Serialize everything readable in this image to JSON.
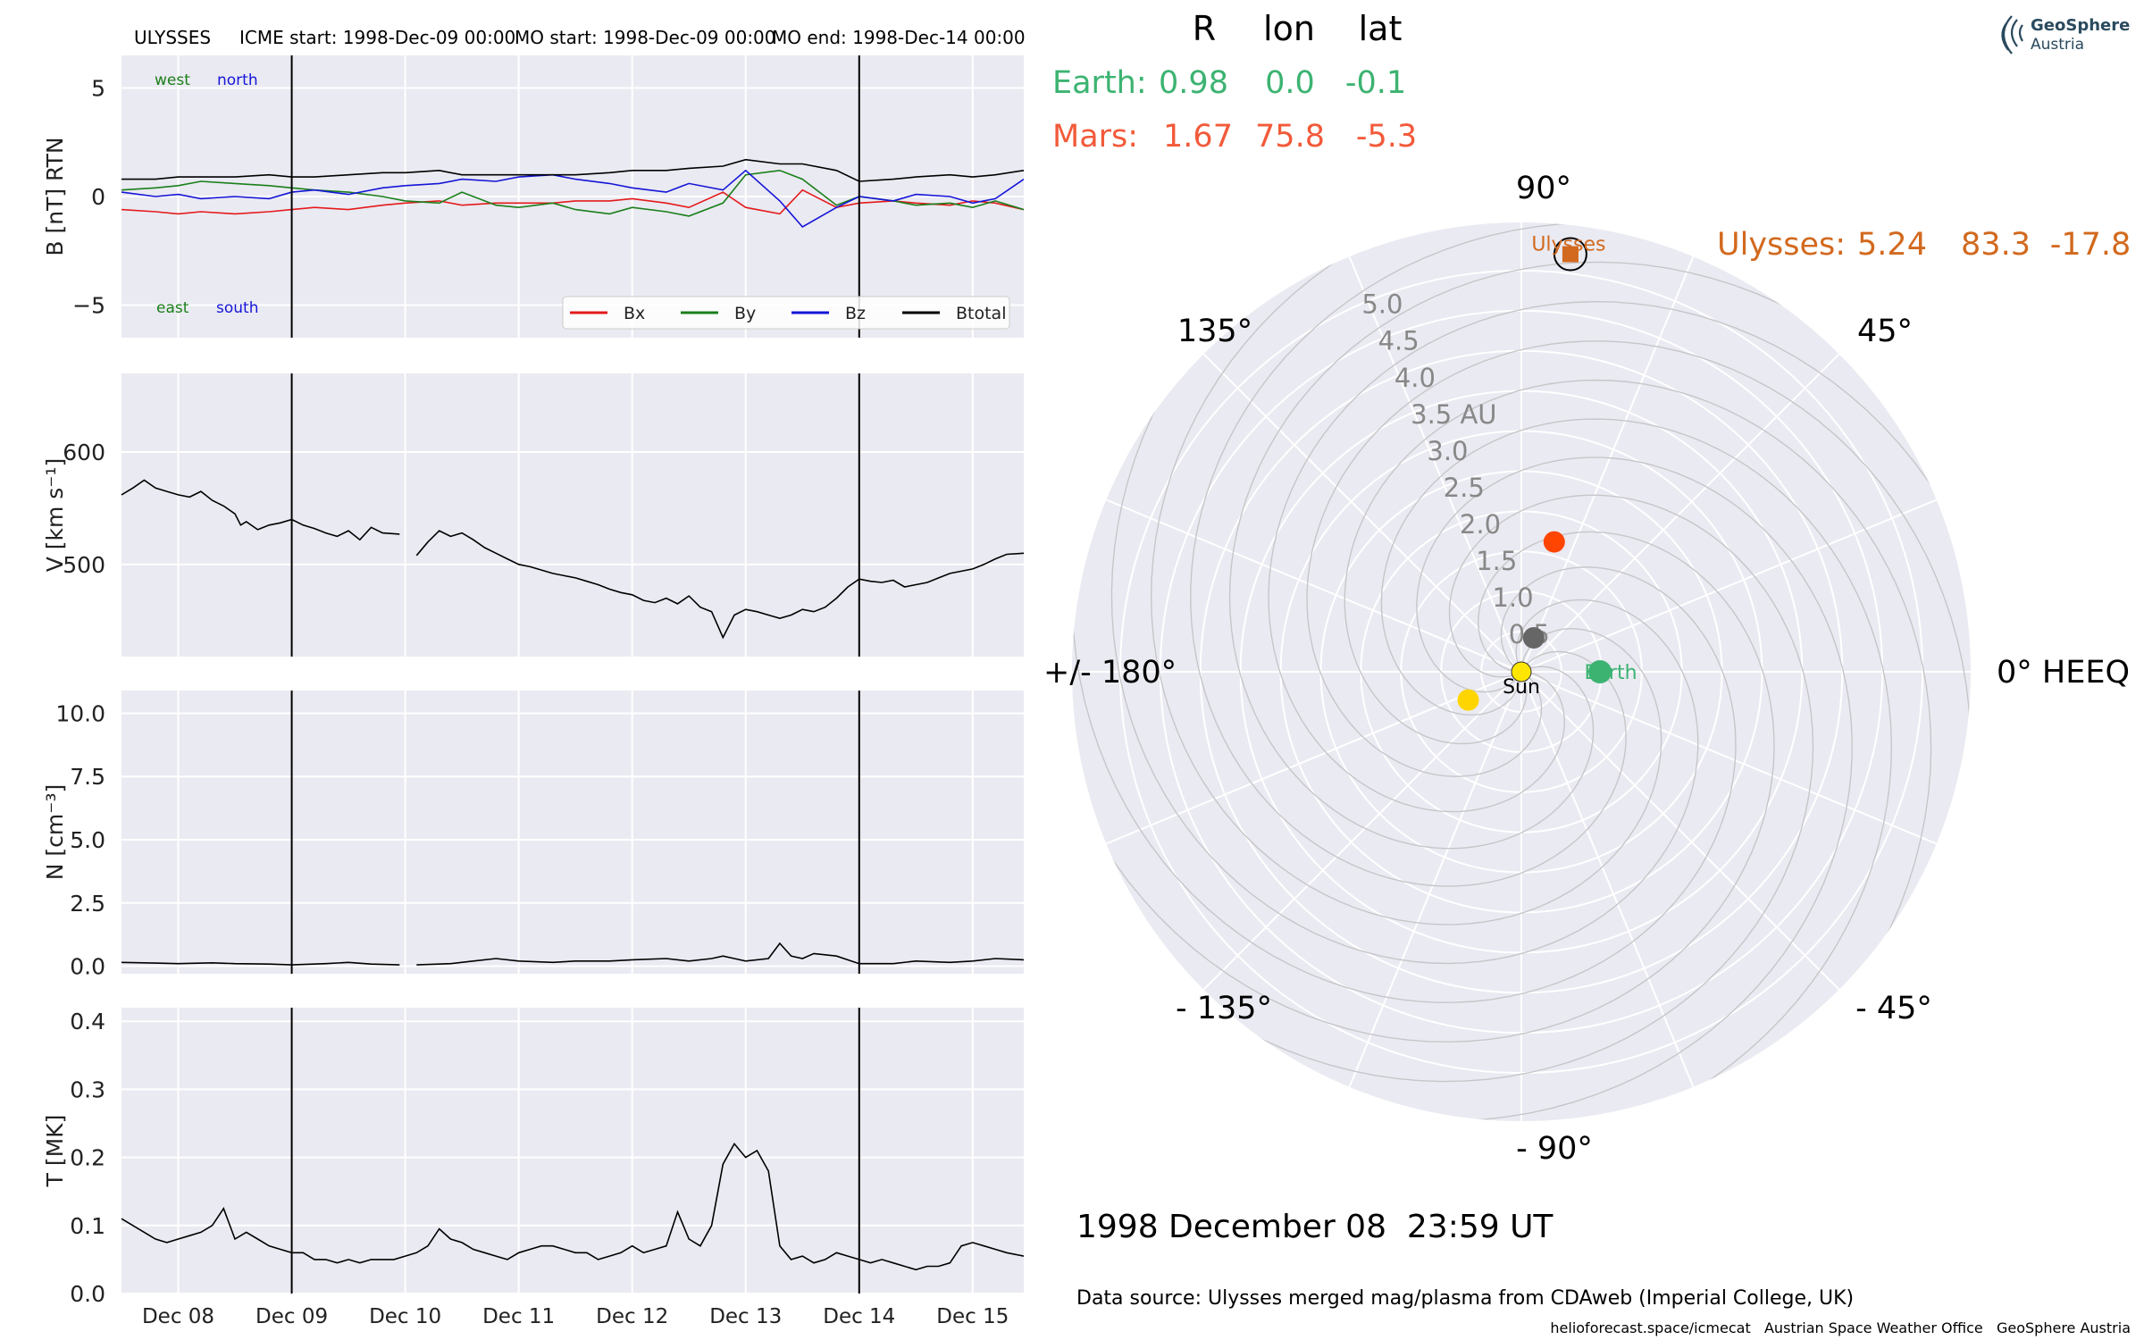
{
  "header": {
    "spacecraft": "ULYSSES",
    "icme_start": "ICME start: 1998-Dec-09 00:00",
    "mo_start": "MO start: 1998-Dec-09 00:00",
    "mo_end": "MO end: 1998-Dec-14 00:00"
  },
  "colors": {
    "bx": "#e41a1c",
    "by": "#1a7f1a",
    "bz": "#1515d8",
    "btot": "#000000",
    "earth": "#3cb371",
    "mars": "#f25a3a",
    "ulysses": "#d2691e",
    "sun": "#ffe600",
    "panel_bg": "#eaeaf2"
  },
  "chart_data": [
    {
      "type": "line",
      "ylabel": "B [nT] RTN",
      "ylim": [
        -6.5,
        6.5
      ],
      "yticks": [
        "5",
        "0",
        "−5"
      ],
      "ytick_values": [
        5,
        0,
        -5
      ],
      "annotations": {
        "west": "west",
        "north": "north",
        "east": "east",
        "south": "south"
      },
      "legend": [
        "Bx",
        "By",
        "Bz",
        "Btotal"
      ],
      "legend_position": "lower-right",
      "series": [
        {
          "name": "Bx",
          "x": [
            7.5,
            7.8,
            8.0,
            8.2,
            8.5,
            8.8,
            9.0,
            9.2,
            9.5,
            9.8,
            10.0,
            10.3,
            10.5,
            10.8,
            11.0,
            11.3,
            11.5,
            11.8,
            12.0,
            12.3,
            12.5,
            12.8,
            13.0,
            13.3,
            13.5,
            13.8,
            14.0,
            14.3,
            14.5,
            14.8,
            15.0,
            15.2,
            15.45
          ],
          "y": [
            -0.6,
            -0.7,
            -0.8,
            -0.7,
            -0.8,
            -0.7,
            -0.6,
            -0.5,
            -0.6,
            -0.4,
            -0.3,
            -0.2,
            -0.4,
            -0.3,
            -0.3,
            -0.3,
            -0.2,
            -0.2,
            -0.1,
            -0.3,
            -0.5,
            0.2,
            -0.5,
            -0.8,
            0.3,
            -0.5,
            -0.3,
            -0.2,
            -0.3,
            -0.4,
            -0.2,
            -0.3,
            -0.6
          ]
        },
        {
          "name": "By",
          "x": [
            7.5,
            7.8,
            8.0,
            8.2,
            8.5,
            8.8,
            9.0,
            9.2,
            9.5,
            9.8,
            10.0,
            10.3,
            10.5,
            10.8,
            11.0,
            11.3,
            11.5,
            11.8,
            12.0,
            12.3,
            12.5,
            12.8,
            13.0,
            13.3,
            13.5,
            13.8,
            14.0,
            14.3,
            14.5,
            14.8,
            15.0,
            15.2,
            15.45
          ],
          "y": [
            0.3,
            0.4,
            0.5,
            0.7,
            0.6,
            0.5,
            0.4,
            0.3,
            0.2,
            0.0,
            -0.2,
            -0.3,
            0.2,
            -0.4,
            -0.5,
            -0.3,
            -0.6,
            -0.8,
            -0.5,
            -0.7,
            -0.9,
            -0.3,
            1.0,
            1.2,
            0.8,
            -0.4,
            0.0,
            -0.2,
            -0.4,
            -0.3,
            -0.5,
            -0.2,
            -0.6
          ]
        },
        {
          "name": "Bz",
          "x": [
            7.5,
            7.8,
            8.0,
            8.2,
            8.5,
            8.8,
            9.0,
            9.2,
            9.5,
            9.8,
            10.0,
            10.3,
            10.5,
            10.8,
            11.0,
            11.3,
            11.5,
            11.8,
            12.0,
            12.3,
            12.5,
            12.8,
            13.0,
            13.3,
            13.5,
            13.8,
            14.0,
            14.3,
            14.5,
            14.8,
            15.0,
            15.2,
            15.45
          ],
          "y": [
            0.2,
            0.0,
            0.1,
            -0.1,
            0.0,
            -0.1,
            0.2,
            0.3,
            0.1,
            0.4,
            0.5,
            0.6,
            0.8,
            0.7,
            0.9,
            1.0,
            0.8,
            0.6,
            0.4,
            0.2,
            0.6,
            0.3,
            1.2,
            -0.2,
            -1.4,
            -0.5,
            0.0,
            -0.2,
            0.1,
            0.0,
            -0.3,
            -0.1,
            0.8
          ]
        },
        {
          "name": "Btotal",
          "x": [
            7.5,
            7.8,
            8.0,
            8.2,
            8.5,
            8.8,
            9.0,
            9.2,
            9.5,
            9.8,
            10.0,
            10.3,
            10.5,
            10.8,
            11.0,
            11.3,
            11.5,
            11.8,
            12.0,
            12.3,
            12.5,
            12.8,
            13.0,
            13.3,
            13.5,
            13.8,
            14.0,
            14.3,
            14.5,
            14.8,
            15.0,
            15.2,
            15.45
          ],
          "y": [
            0.8,
            0.8,
            0.9,
            0.9,
            0.9,
            1.0,
            0.9,
            0.9,
            1.0,
            1.1,
            1.1,
            1.2,
            1.0,
            1.0,
            1.0,
            1.0,
            1.0,
            1.1,
            1.2,
            1.2,
            1.3,
            1.4,
            1.7,
            1.5,
            1.5,
            1.2,
            0.7,
            0.8,
            0.9,
            1.0,
            0.9,
            1.0,
            1.2
          ]
        }
      ]
    },
    {
      "type": "line",
      "ylabel": "V [km s⁻¹]",
      "ylim": [
        418,
        670
      ],
      "yticks": [
        "600",
        "500"
      ],
      "ytick_values": [
        600,
        500
      ],
      "series": [
        {
          "segments": [
            {
              "x": [
                7.5,
                7.6,
                7.7,
                7.8,
                7.9,
                8.0,
                8.1,
                8.2,
                8.3,
                8.4,
                8.5,
                8.55,
                8.6,
                8.7,
                8.8,
                8.9,
                9.0,
                9.1,
                9.2,
                9.3,
                9.4,
                9.5,
                9.6,
                9.7,
                9.8,
                9.95
              ],
              "y": [
                562,
                568,
                575,
                568,
                565,
                562,
                560,
                565,
                557,
                552,
                545,
                535,
                538,
                531,
                535,
                537,
                540,
                535,
                532,
                528,
                525,
                530,
                522,
                533,
                528,
                527
              ]
            },
            {
              "x": [
                10.1,
                10.2,
                10.3,
                10.4,
                10.5,
                10.6,
                10.7,
                10.8,
                10.9,
                11.0,
                11.1,
                11.2,
                11.3,
                11.4,
                11.5,
                11.6,
                11.7,
                11.8,
                11.9,
                12.0,
                12.1,
                12.2,
                12.3,
                12.4,
                12.5,
                12.6,
                12.7,
                12.8,
                12.9,
                13.0,
                13.1,
                13.2,
                13.3,
                13.4,
                13.5,
                13.6,
                13.7,
                13.8,
                13.9,
                14.0,
                14.1,
                14.2,
                14.3,
                14.4,
                14.5,
                14.6,
                14.7,
                14.8,
                14.9,
                15.0,
                15.1,
                15.2,
                15.3,
                15.45
              ],
              "y": [
                508,
                520,
                530,
                525,
                528,
                522,
                515,
                510,
                505,
                500,
                498,
                495,
                492,
                490,
                488,
                485,
                482,
                478,
                475,
                473,
                468,
                466,
                470,
                465,
                472,
                462,
                458,
                435,
                455,
                460,
                458,
                455,
                452,
                455,
                460,
                458,
                462,
                470,
                480,
                487,
                485,
                484,
                486,
                480,
                482,
                484,
                488,
                492,
                494,
                496,
                500,
                505,
                509,
                510
              ]
            }
          ]
        }
      ]
    },
    {
      "type": "line",
      "ylabel": "N [cm⁻³]",
      "ylim": [
        -0.3,
        10.9
      ],
      "yticks": [
        "10.0",
        "7.5",
        "5.0",
        "2.5",
        "0.0"
      ],
      "ytick_values": [
        10,
        7.5,
        5,
        2.5,
        0
      ],
      "series": [
        {
          "segments": [
            {
              "x": [
                7.5,
                7.8,
                8.0,
                8.3,
                8.5,
                8.8,
                9.0,
                9.3,
                9.5,
                9.7,
                9.95
              ],
              "y": [
                0.15,
                0.12,
                0.1,
                0.13,
                0.1,
                0.08,
                0.05,
                0.1,
                0.15,
                0.08,
                0.05
              ]
            },
            {
              "x": [
                10.1,
                10.4,
                10.6,
                10.8,
                11.0,
                11.3,
                11.5,
                11.8,
                12.0,
                12.3,
                12.5,
                12.7,
                12.8,
                12.9,
                13.0,
                13.2,
                13.3,
                13.4,
                13.5,
                13.6,
                13.8,
                14.0,
                14.3,
                14.5,
                14.8,
                15.0,
                15.2,
                15.45
              ],
              "y": [
                0.05,
                0.1,
                0.2,
                0.3,
                0.2,
                0.15,
                0.2,
                0.2,
                0.25,
                0.3,
                0.2,
                0.3,
                0.4,
                0.3,
                0.2,
                0.3,
                0.9,
                0.4,
                0.3,
                0.5,
                0.4,
                0.1,
                0.1,
                0.2,
                0.15,
                0.2,
                0.3,
                0.25
              ]
            }
          ]
        }
      ]
    },
    {
      "type": "line",
      "ylabel": "T [MK]",
      "ylim": [
        0,
        0.42
      ],
      "yticks": [
        "0.4",
        "0.3",
        "0.2",
        "0.1",
        "0.0"
      ],
      "ytick_values": [
        0.4,
        0.3,
        0.2,
        0.1,
        0.0
      ],
      "xtick_labels": [
        "Dec 08",
        "Dec 09",
        "Dec 10",
        "Dec 11",
        "Dec 12",
        "Dec 13",
        "Dec 14",
        "Dec 15"
      ],
      "xtick_values": [
        8,
        9,
        10,
        11,
        12,
        13,
        14,
        15
      ],
      "xlim": [
        7.5,
        15.45
      ],
      "vlines": [
        9,
        14
      ],
      "series": [
        {
          "x": [
            7.5,
            7.6,
            7.7,
            7.8,
            7.9,
            8.0,
            8.1,
            8.2,
            8.3,
            8.4,
            8.5,
            8.6,
            8.7,
            8.8,
            8.9,
            9.0,
            9.1,
            9.2,
            9.3,
            9.4,
            9.5,
            9.6,
            9.7,
            9.8,
            9.9,
            10.0,
            10.1,
            10.2,
            10.3,
            10.4,
            10.5,
            10.6,
            10.7,
            10.8,
            10.9,
            11.0,
            11.1,
            11.2,
            11.3,
            11.4,
            11.5,
            11.6,
            11.7,
            11.8,
            11.9,
            12.0,
            12.1,
            12.2,
            12.3,
            12.4,
            12.5,
            12.6,
            12.7,
            12.8,
            12.9,
            13.0,
            13.1,
            13.2,
            13.3,
            13.4,
            13.5,
            13.6,
            13.7,
            13.8,
            13.9,
            14.0,
            14.1,
            14.2,
            14.3,
            14.4,
            14.5,
            14.6,
            14.7,
            14.8,
            14.9,
            15.0,
            15.1,
            15.2,
            15.3,
            15.45
          ],
          "y": [
            0.11,
            0.1,
            0.09,
            0.08,
            0.075,
            0.08,
            0.085,
            0.09,
            0.1,
            0.125,
            0.08,
            0.09,
            0.08,
            0.07,
            0.065,
            0.06,
            0.06,
            0.05,
            0.05,
            0.045,
            0.05,
            0.045,
            0.05,
            0.05,
            0.05,
            0.055,
            0.06,
            0.07,
            0.095,
            0.08,
            0.075,
            0.065,
            0.06,
            0.055,
            0.05,
            0.06,
            0.065,
            0.07,
            0.07,
            0.065,
            0.06,
            0.06,
            0.05,
            0.055,
            0.06,
            0.07,
            0.06,
            0.065,
            0.07,
            0.12,
            0.08,
            0.07,
            0.1,
            0.19,
            0.22,
            0.2,
            0.21,
            0.18,
            0.07,
            0.05,
            0.055,
            0.045,
            0.05,
            0.06,
            0.055,
            0.05,
            0.045,
            0.05,
            0.045,
            0.04,
            0.035,
            0.04,
            0.04,
            0.045,
            0.07,
            0.075,
            0.07,
            0.065,
            0.06,
            0.055
          ]
        }
      ]
    },
    {
      "type": "scatter",
      "title": "",
      "projection": "polar",
      "angle_labels": [
        "90°",
        "45°",
        "0° HEEQ",
        "- 45°",
        "- 90°",
        "- 135°",
        "+/- 180°",
        "135°"
      ],
      "angle_values": [
        90,
        45,
        0,
        -45,
        -90,
        -135,
        180,
        135
      ],
      "radial_labels": [
        "0.5",
        "1.0",
        "1.5",
        "2.0",
        "2.5",
        "3.0",
        "3.5 AU",
        "4.0",
        "4.5",
        "5.0"
      ],
      "radial_values": [
        0.5,
        1.0,
        1.5,
        2.0,
        2.5,
        3.0,
        3.5,
        4.0,
        4.5,
        5.0
      ],
      "rlim": [
        0,
        5.6
      ],
      "table_header": [
        "R",
        "lon",
        "lat"
      ],
      "bodies": [
        {
          "name": "Earth",
          "label": "Earth:",
          "R": "0.98",
          "lon": "0.0",
          "lat": "-0.1",
          "r": 0.98,
          "theta": 0.0,
          "color": "#3cb371"
        },
        {
          "name": "Mars",
          "label": "Mars:",
          "R": "1.67",
          "lon": "75.8",
          "lat": "-5.3",
          "r": 1.67,
          "theta": 75.8,
          "color": "#ff4500"
        },
        {
          "name": "Ulysses",
          "label": "Ulysses:",
          "R": "5.24",
          "lon": "83.3",
          "lat": "-17.8",
          "r": 5.24,
          "theta": 83.3,
          "color": "#d2691e"
        }
      ],
      "other_points": [
        {
          "r": 0.0,
          "theta": 0,
          "color": "#ffe600"
        },
        {
          "r": 0.45,
          "theta": 70,
          "color": "#666666"
        },
        {
          "r": 0.75,
          "theta": 208,
          "color": "#ffd500"
        }
      ],
      "map_labels": {
        "sun": "Sun",
        "earth": "Earth",
        "ulysses": "Ulysses"
      }
    }
  ],
  "footer": {
    "datetime": "1998 December 08  23:59 UT",
    "source": "Data source: Ulysses merged mag/plasma from CDAweb (Imperial College, UK)",
    "credits": "helioforecast.space/icmecat   Austrian Space Weather Office   GeoSphere Austria"
  },
  "logo": {
    "line1": "GeoSphere",
    "line2": "Austria"
  }
}
